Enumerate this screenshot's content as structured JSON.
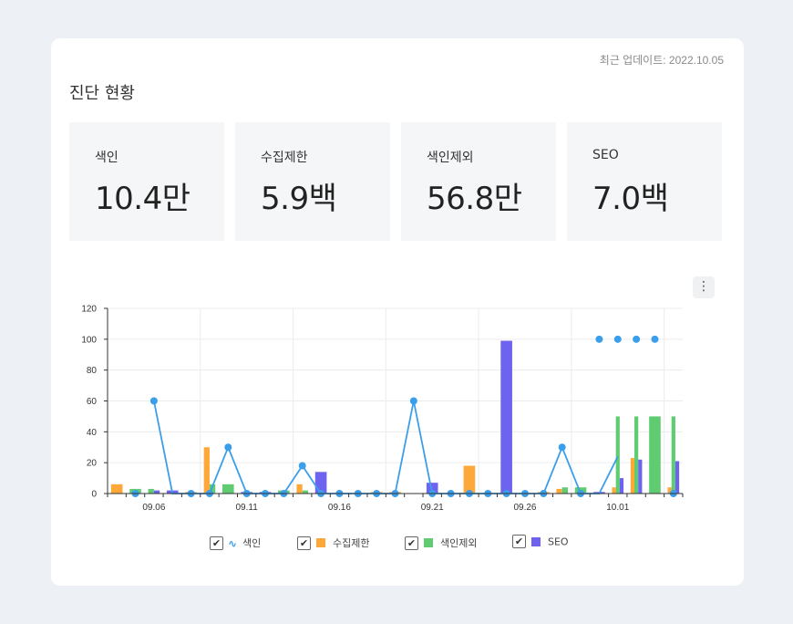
{
  "header": {
    "updated": "최근 업데이트: 2022.10.05",
    "title": "진단 현황"
  },
  "stats": [
    {
      "label": "색인",
      "value": "10.4만"
    },
    {
      "label": "수집제한",
      "value": "5.9백"
    },
    {
      "label": "색인제외",
      "value": "56.8만"
    },
    {
      "label": "SEO",
      "value": "7.0백"
    }
  ],
  "menu": {
    "icon": "more-vertical-icon",
    "glyph": "⋮"
  },
  "legend": {
    "check": "✔",
    "line_glyph": "∿",
    "items": [
      {
        "label": "색인",
        "color": "#3b9eea"
      },
      {
        "label": "수집제한",
        "color": "#ffa83a"
      },
      {
        "label": "색인제외",
        "color": "#5fcc72"
      },
      {
        "label": "SEO",
        "color": "#6e63ef"
      }
    ]
  },
  "chart_data": {
    "type": "bar",
    "ylim": [
      0,
      120
    ],
    "yticks": [
      0,
      20,
      40,
      60,
      80,
      100,
      120
    ],
    "xtick_labels": [
      "09.06",
      "09.11",
      "09.16",
      "09.21",
      "09.26",
      "10.01"
    ],
    "categories": [
      "09.04",
      "09.05",
      "09.06",
      "09.07",
      "09.08",
      "09.09",
      "09.10",
      "09.11",
      "09.12",
      "09.13",
      "09.14",
      "09.15",
      "09.16",
      "09.17",
      "09.18",
      "09.19",
      "09.20",
      "09.21",
      "09.22",
      "09.23",
      "09.24",
      "09.25",
      "09.26",
      "09.27",
      "09.28",
      "09.29",
      "09.30",
      "10.01",
      "10.02",
      "10.03",
      "10.04"
    ],
    "series": [
      {
        "name": "색인",
        "type": "line",
        "color": "#3b9eea",
        "values": [
          0,
          0,
          60,
          0,
          0,
          0,
          30,
          0,
          0,
          0,
          18,
          0,
          0,
          0,
          0,
          0,
          60,
          0,
          0,
          0,
          0,
          0,
          0,
          0,
          30,
          0,
          0,
          24,
          0,
          0,
          0
        ],
        "dots": [
          null,
          0,
          60,
          null,
          0,
          0,
          30,
          0,
          0,
          0,
          18,
          0,
          0,
          0,
          0,
          0,
          60,
          0,
          0,
          0,
          0,
          0,
          0,
          0,
          30,
          0,
          100,
          100,
          100,
          100,
          0
        ]
      },
      {
        "name": "수집제한",
        "type": "bar",
        "color": "#ffa83a",
        "values": [
          6,
          0,
          0,
          0,
          1,
          30,
          0,
          0,
          0,
          0,
          6,
          0,
          0,
          0,
          1,
          1,
          0,
          0,
          0,
          18,
          0,
          0,
          0,
          1,
          3,
          0,
          0,
          4,
          23,
          0,
          4
        ]
      },
      {
        "name": "색인제외",
        "type": "bar",
        "color": "#5fcc72",
        "values": [
          0,
          3,
          3,
          0,
          0,
          6,
          6,
          0,
          0,
          2,
          2,
          0,
          0,
          0,
          0,
          0,
          0,
          0,
          0,
          0,
          0,
          0,
          0,
          0,
          4,
          4,
          0,
          50,
          50,
          50,
          50
        ]
      },
      {
        "name": "SEO",
        "type": "bar",
        "color": "#6e63ef",
        "values": [
          0,
          0,
          2,
          2,
          0,
          0,
          0,
          1,
          1,
          0,
          0,
          14,
          0,
          0,
          0,
          0,
          0,
          7,
          0,
          0,
          0,
          99,
          0,
          0,
          0,
          0,
          1,
          10,
          22,
          0,
          21
        ]
      }
    ]
  }
}
